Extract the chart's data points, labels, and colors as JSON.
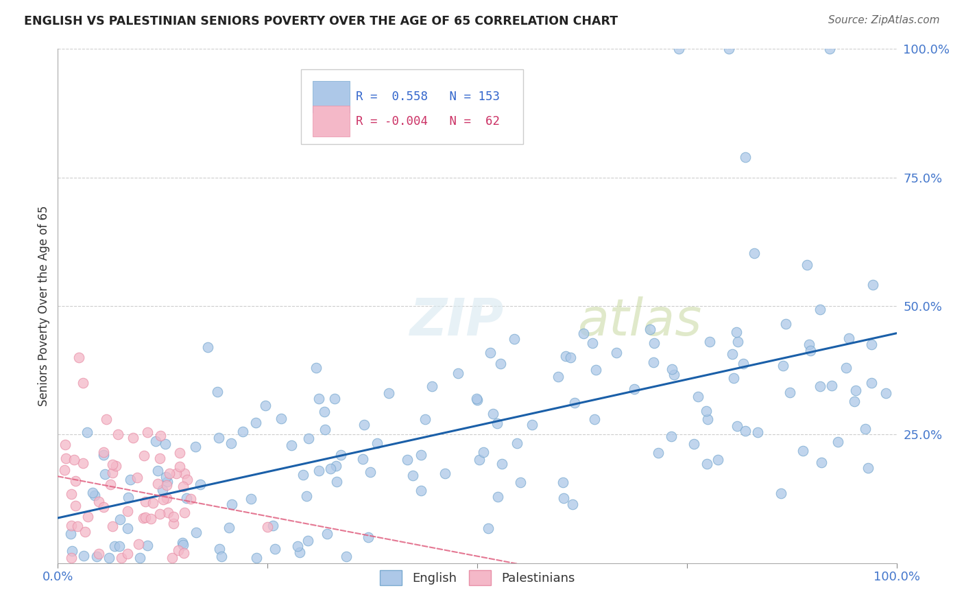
{
  "title": "ENGLISH VS PALESTINIAN SENIORS POVERTY OVER THE AGE OF 65 CORRELATION CHART",
  "source": "Source: ZipAtlas.com",
  "ylabel": "Seniors Poverty Over the Age of 65",
  "xlim": [
    0,
    1
  ],
  "ylim": [
    0,
    1
  ],
  "english_R": 0.558,
  "english_N": 153,
  "palestinian_R": -0.004,
  "palestinian_N": 62,
  "english_color": "#adc8e8",
  "english_edge_color": "#7aaad0",
  "english_line_color": "#1a5fa8",
  "palestinian_color": "#f4b8c8",
  "palestinian_edge_color": "#e890a8",
  "palestinian_line_color": "#e06080",
  "background_color": "#ffffff",
  "watermark_zip": "ZIP",
  "watermark_atlas": "atlas",
  "watermark_color": "#d8e8f0",
  "watermark_atlas_color": "#c8d8a0",
  "grid_color": "#c8c8c8",
  "ytick_labels": [
    "",
    "25.0%",
    "50.0%",
    "75.0%",
    "100.0%"
  ],
  "xtick_labels": [
    "0.0%",
    "",
    "",
    "",
    "100.0%"
  ],
  "tick_color": "#4477cc",
  "ylabel_color": "#333333",
  "title_color": "#222222",
  "source_color": "#666666",
  "legend_r_color_blue": "#3366cc",
  "legend_r_color_pink": "#cc3366",
  "legend_n_color": "#3366cc",
  "bottom_legend_color": "#333333"
}
